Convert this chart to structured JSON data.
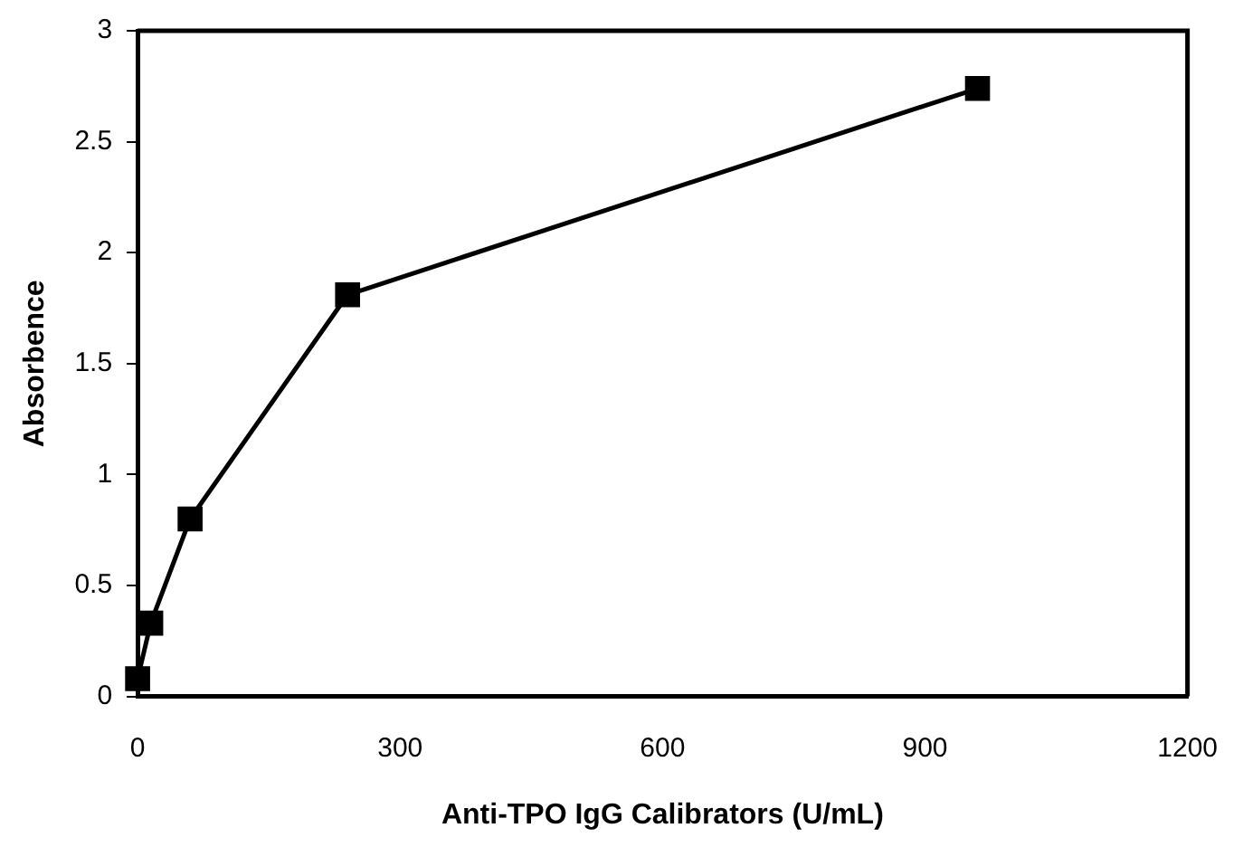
{
  "chart_data": {
    "type": "line",
    "xlabel": "Anti-TPO IgG Calibrators (U/mL)",
    "ylabel": "Absorbence",
    "x": [
      0,
      15,
      60,
      240,
      960
    ],
    "series": [
      {
        "color": "#000000",
        "values": [
          0.08,
          0.33,
          0.8,
          1.81,
          2.74
        ]
      }
    ],
    "xlim": [
      0,
      1200
    ],
    "xticks": [
      0,
      300,
      600,
      900,
      1200
    ],
    "ylim": [
      0,
      3
    ],
    "yticks": [
      0,
      0.5,
      1,
      1.5,
      2,
      2.5,
      3
    ],
    "grid": false,
    "legend": false,
    "marker": "square",
    "line_style": "solid"
  }
}
